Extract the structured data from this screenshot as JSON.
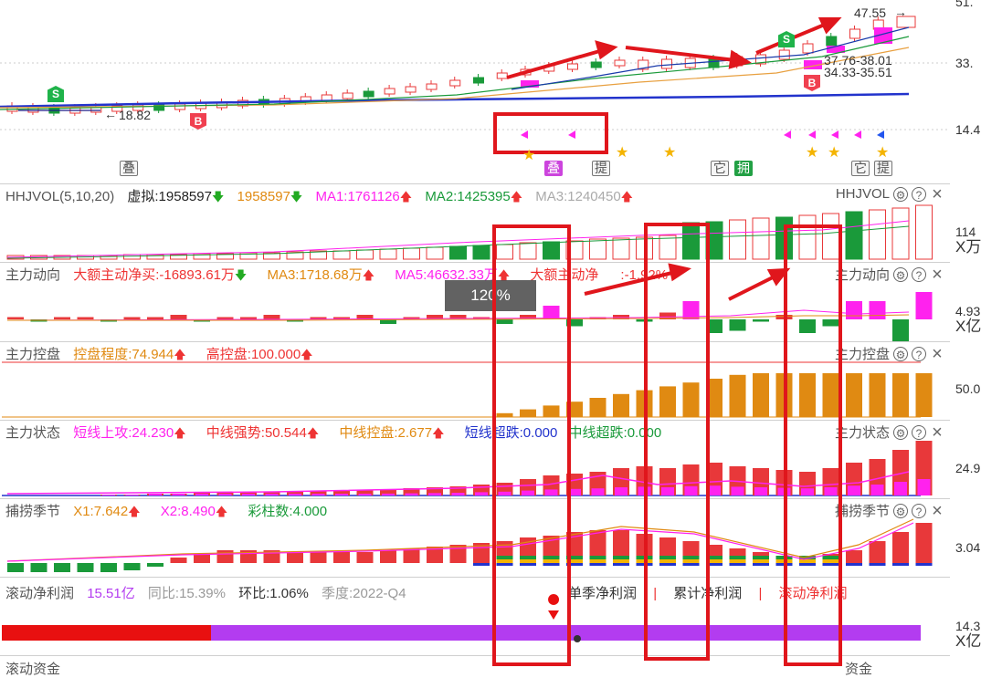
{
  "price_panel": {
    "price_labels": {
      "high": "47.55",
      "mid1": "37.76-38.01",
      "mid2": "34.33-35.51",
      "low": "18.82"
    },
    "axis": [
      "51.",
      "33.",
      "14.4"
    ],
    "signals": {
      "s1": "S",
      "s2": "S",
      "b1": "B",
      "b2": "B"
    },
    "badges": [
      "叠",
      "叠",
      "提",
      "它",
      "拥",
      "它",
      "提"
    ]
  },
  "vol_panel": {
    "title": "HHJVOL(5,10,20)",
    "virtual_label": "虚拟:1958597",
    "value2": "1958597",
    "ma1": "MA1:1761126",
    "ma2": "MA2:1425395",
    "ma3": "MA3:1240450",
    "right_title": "HHJVOL",
    "axis_value": "114",
    "axis_unit": "X万"
  },
  "flow_panel": {
    "title": "主力动向",
    "big_net": "大额主动净买:-16893.61万",
    "ma3": "MA3:1718.68万",
    "ma5": "MA5:4663",
    "ma5_tail": "2.33万",
    "big_ratio_a": "大额主动净",
    "big_ratio_b": ":-1.92%",
    "right_title": "主力动向",
    "axis_value": "4.93",
    "axis_unit": "X亿",
    "tooltip": "120%"
  },
  "control_panel": {
    "title": "主力控盘",
    "degree": "控盘程度:74.944",
    "high": "高控盘:100.000",
    "right_title": "主力控盘",
    "axis_value": "50.0"
  },
  "state_panel": {
    "title": "主力状态",
    "short_attack": "短线上攻:24.230",
    "mid_strong": "中线强势:50.544",
    "mid_control": "中线控盘:2.677",
    "short_fall": "短线超跌:0.000",
    "mid_fall": "中线超跌:0.000",
    "right_title": "主力状态",
    "axis_value": "24.9"
  },
  "season_panel": {
    "title": "捕捞季节",
    "x1": "X1:7.642",
    "x2": "X2:8.490",
    "colors": "彩柱数:4.000",
    "right_title": "捕捞季节",
    "axis_value": "3.04"
  },
  "profit_panel": {
    "title": "滚动净利润",
    "value": "15.51亿",
    "yoy": "同比:15.39%",
    "qoq": "环比:1.06%",
    "season": "季度:2022-Q4",
    "tabs": [
      "单季净利润",
      "累计净利润",
      "滚动净利润"
    ],
    "axis_value": "14.3",
    "axis_unit": "X亿"
  },
  "bottom_panel": {
    "title": "滚动资金",
    "right_title": "资金"
  },
  "colors": {
    "red": "#e8383a",
    "green": "#1a9a3a",
    "magenta": "#ff22ee",
    "orange": "#e08a12",
    "purple": "#b33cf0",
    "highlight": "#e0161c"
  }
}
